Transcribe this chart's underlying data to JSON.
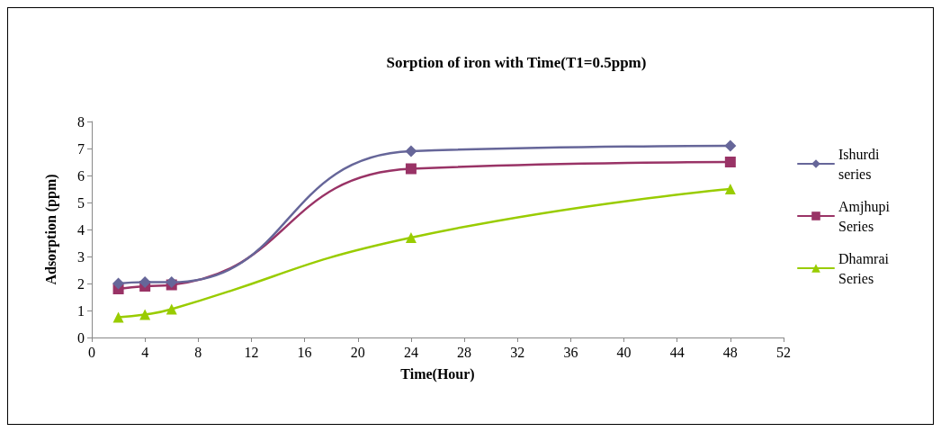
{
  "chart_data": {
    "type": "line",
    "title": "Sorption of iron with Time(T1=0.5ppm)",
    "xlabel": "Time(Hour)",
    "ylabel": "Adsorption (ppm)",
    "x": [
      2,
      4,
      6,
      24,
      48
    ],
    "series": [
      {
        "name": "Ishurdi series",
        "color": "#666699",
        "marker": "diamond",
        "values": [
          2.0,
          2.05,
          2.05,
          6.9,
          7.1
        ]
      },
      {
        "name": "Amjhupi Series",
        "color": "#993366",
        "marker": "square",
        "values": [
          1.8,
          1.9,
          1.95,
          6.25,
          6.5
        ]
      },
      {
        "name": "Dhamrai Series",
        "color": "#99cc00",
        "marker": "triangle",
        "values": [
          0.75,
          0.85,
          1.05,
          3.7,
          5.5
        ]
      }
    ],
    "xlim": [
      0,
      52
    ],
    "xticks": [
      0,
      4,
      8,
      12,
      16,
      20,
      24,
      28,
      32,
      36,
      40,
      44,
      48,
      52
    ],
    "ylim": [
      0,
      8
    ],
    "yticks": [
      0,
      1,
      2,
      3,
      4,
      5,
      6,
      7,
      8
    ],
    "grid": false,
    "legend": "right"
  }
}
